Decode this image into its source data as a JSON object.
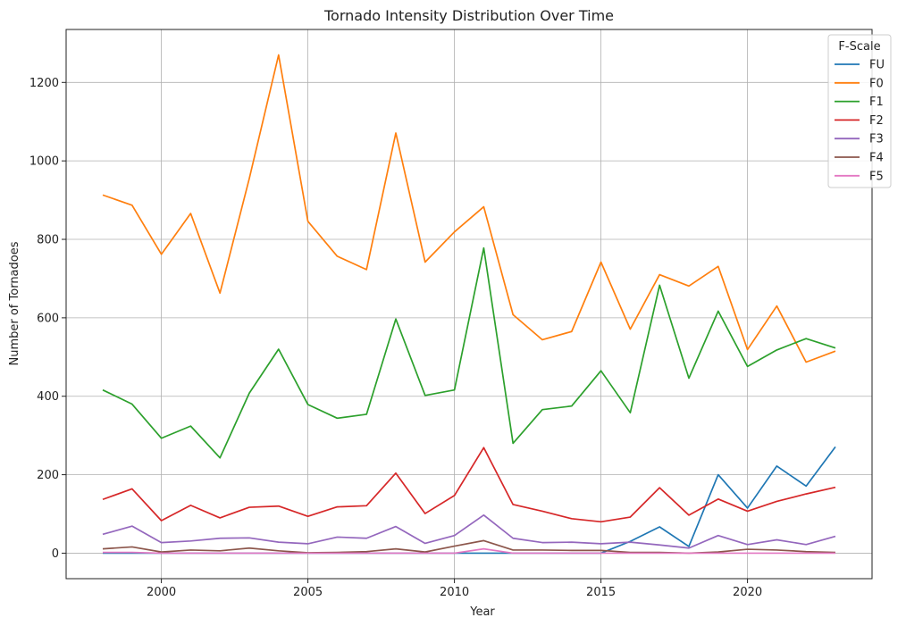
{
  "chart_data": {
    "type": "line",
    "title": "Tornado Intensity Distribution Over Time",
    "xlabel": "Year",
    "ylabel": "Number of Tornadoes",
    "xlim": [
      1996.75,
      2024.25
    ],
    "ylim": [
      -65,
      1335
    ],
    "x_ticks": [
      2000,
      2005,
      2010,
      2015,
      2020
    ],
    "y_ticks": [
      0,
      200,
      400,
      600,
      800,
      1000,
      1200
    ],
    "grid": true,
    "legend": {
      "title": "F-Scale",
      "placement": "top-right"
    },
    "x": [
      1998,
      1999,
      2000,
      2001,
      2002,
      2003,
      2004,
      2005,
      2006,
      2007,
      2008,
      2009,
      2010,
      2011,
      2012,
      2013,
      2014,
      2015,
      2016,
      2017,
      2018,
      2019,
      2020,
      2021,
      2022,
      2023
    ],
    "series": [
      {
        "name": "FU",
        "color": "#1f77b4",
        "values": [
          0,
          0,
          0,
          0,
          0,
          0,
          0,
          0,
          0,
          0,
          0,
          0,
          0,
          0,
          0,
          0,
          0,
          0,
          30,
          67,
          17,
          200,
          115,
          222,
          171,
          271
        ]
      },
      {
        "name": "F0",
        "color": "#ff7f0e",
        "values": [
          913,
          887,
          762,
          866,
          663,
          955,
          1270,
          846,
          757,
          723,
          1071,
          742,
          819,
          883,
          608,
          544,
          565,
          742,
          571,
          710,
          681,
          731,
          519,
          630,
          487,
          515
        ]
      },
      {
        "name": "F1",
        "color": "#2ca02c",
        "values": [
          416,
          380,
          293,
          324,
          243,
          408,
          520,
          379,
          344,
          354,
          597,
          402,
          416,
          778,
          280,
          366,
          375,
          465,
          358,
          683,
          446,
          617,
          476,
          518,
          547,
          523
        ]
      },
      {
        "name": "F2",
        "color": "#d62728",
        "values": [
          137,
          164,
          83,
          122,
          90,
          117,
          120,
          94,
          118,
          121,
          204,
          101,
          147,
          269,
          124,
          107,
          88,
          80,
          92,
          167,
          97,
          138,
          107,
          132,
          151,
          168
        ]
      },
      {
        "name": "F3",
        "color": "#9467bd",
        "values": [
          48,
          69,
          27,
          31,
          38,
          39,
          28,
          24,
          41,
          38,
          68,
          25,
          45,
          97,
          38,
          27,
          28,
          24,
          28,
          21,
          13,
          45,
          22,
          34,
          22,
          43
        ]
      },
      {
        "name": "F4",
        "color": "#8c564b",
        "values": [
          11,
          16,
          3,
          8,
          6,
          13,
          6,
          1,
          2,
          4,
          11,
          3,
          18,
          32,
          8,
          8,
          7,
          7,
          2,
          2,
          0,
          3,
          10,
          8,
          4,
          2
        ]
      },
      {
        "name": "F5",
        "color": "#e377c2",
        "values": [
          2,
          2,
          0,
          0,
          0,
          0,
          0,
          0,
          0,
          0,
          0,
          0,
          0,
          11,
          0,
          0,
          0,
          0,
          0,
          0,
          0,
          0,
          0,
          0,
          0,
          0
        ]
      }
    ]
  }
}
